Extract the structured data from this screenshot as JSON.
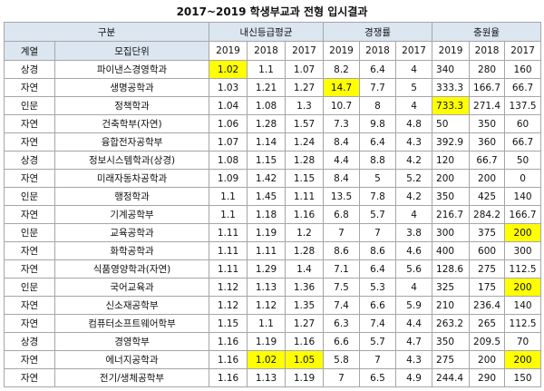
{
  "title": "2017~2019 학생부교과 전형 입시결과",
  "header": {
    "group": "구분",
    "grade_avg": "내신등급평균",
    "competition": "경쟁률",
    "fill_rate": "충원율",
    "field": "계열",
    "unit": "모집단위",
    "years": [
      "2019",
      "2018",
      "2017"
    ]
  },
  "highlight_color": "#ffff00",
  "rows": [
    {
      "field": "상경",
      "unit": "파이낸스경영학과",
      "g": [
        "1.02",
        "1.1",
        "1.07"
      ],
      "c": [
        "8.2",
        "6.4",
        "4"
      ],
      "f": [
        "340",
        "280",
        "160"
      ],
      "hl": [
        "g0"
      ]
    },
    {
      "field": "자연",
      "unit": "생명공학과",
      "g": [
        "1.03",
        "1.21",
        "1.27"
      ],
      "c": [
        "14.7",
        "7.7",
        "5"
      ],
      "f": [
        "333.3",
        "166.7",
        "66.7"
      ],
      "hl": [
        "c0"
      ]
    },
    {
      "field": "인문",
      "unit": "정책학과",
      "g": [
        "1.04",
        "1.08",
        "1.3"
      ],
      "c": [
        "10.7",
        "8",
        "4"
      ],
      "f": [
        "733.3",
        "271.4",
        "137.5"
      ],
      "hl": [
        "f0"
      ]
    },
    {
      "field": "자연",
      "unit": "건축학부(자연)",
      "g": [
        "1.06",
        "1.28",
        "1.57"
      ],
      "c": [
        "7.3",
        "9.8",
        "4.8"
      ],
      "f": [
        "50",
        "350",
        "60"
      ],
      "hl": []
    },
    {
      "field": "자연",
      "unit": "융합전자공학부",
      "g": [
        "1.07",
        "1.14",
        "1.24"
      ],
      "c": [
        "8.4",
        "6.4",
        "4.3"
      ],
      "f": [
        "392.9",
        "360",
        "66.7"
      ],
      "hl": []
    },
    {
      "field": "상경",
      "unit": "정보시스템학과(상경)",
      "g": [
        "1.08",
        "1.15",
        "1.28"
      ],
      "c": [
        "4.4",
        "8.8",
        "4.2"
      ],
      "f": [
        "120",
        "66.7",
        "50"
      ],
      "hl": []
    },
    {
      "field": "자연",
      "unit": "미래자동차공학과",
      "g": [
        "1.09",
        "1.42",
        "1.15"
      ],
      "c": [
        "8.4",
        "5",
        "5.2"
      ],
      "f": [
        "200",
        "200",
        "0"
      ],
      "hl": []
    },
    {
      "field": "인문",
      "unit": "행정학과",
      "g": [
        "1.1",
        "1.45",
        "1.11"
      ],
      "c": [
        "13.5",
        "7.8",
        "4.2"
      ],
      "f": [
        "350",
        "425",
        "140"
      ],
      "hl": []
    },
    {
      "field": "자연",
      "unit": "기계공학부",
      "g": [
        "1.1",
        "1.18",
        "1.16"
      ],
      "c": [
        "6.8",
        "5.7",
        "4"
      ],
      "f": [
        "216.7",
        "284.2",
        "166.7"
      ],
      "hl": []
    },
    {
      "field": "인문",
      "unit": "교육공학과",
      "g": [
        "1.11",
        "1.19",
        "1.2"
      ],
      "c": [
        "7",
        "7",
        "3.8"
      ],
      "f": [
        "300",
        "375",
        "200"
      ],
      "hl": [
        "f2"
      ]
    },
    {
      "field": "자연",
      "unit": "화학공학과",
      "g": [
        "1.11",
        "1.11",
        "1.28"
      ],
      "c": [
        "8.6",
        "8.6",
        "4.6"
      ],
      "f": [
        "400",
        "600",
        "300"
      ],
      "hl": []
    },
    {
      "field": "자연",
      "unit": "식품영양학과(자연)",
      "g": [
        "1.11",
        "1.29",
        "1.4"
      ],
      "c": [
        "7.1",
        "6.4",
        "5.6"
      ],
      "f": [
        "128.6",
        "275",
        "112.5"
      ],
      "hl": []
    },
    {
      "field": "인문",
      "unit": "국어교육과",
      "g": [
        "1.12",
        "1.13",
        "1.36"
      ],
      "c": [
        "7.5",
        "5.3",
        "4"
      ],
      "f": [
        "325",
        "175",
        "200"
      ],
      "hl": [
        "f2"
      ]
    },
    {
      "field": "자연",
      "unit": "신소재공학부",
      "g": [
        "1.12",
        "1.12",
        "1.35"
      ],
      "c": [
        "7.4",
        "6.6",
        "5.9"
      ],
      "f": [
        "210",
        "236.4",
        "140"
      ],
      "hl": []
    },
    {
      "field": "자연",
      "unit": "컴퓨터소프트웨어학부",
      "g": [
        "1.15",
        "1.1",
        "1.27"
      ],
      "c": [
        "6.3",
        "7.4",
        "4.4"
      ],
      "f": [
        "263.2",
        "265",
        "112.5"
      ],
      "hl": []
    },
    {
      "field": "상경",
      "unit": "경영학부",
      "g": [
        "1.16",
        "1.19",
        "1.16"
      ],
      "c": [
        "6.6",
        "5.7",
        "4.7"
      ],
      "f": [
        "350",
        "209.5",
        "70"
      ],
      "hl": []
    },
    {
      "field": "자연",
      "unit": "에너지공학과",
      "g": [
        "1.16",
        "1.02",
        "1.05"
      ],
      "c": [
        "5.8",
        "7",
        "4.3"
      ],
      "f": [
        "275",
        "200",
        "200"
      ],
      "hl": [
        "g1",
        "g2",
        "f2"
      ]
    },
    {
      "field": "자연",
      "unit": "전기/생체공학부",
      "g": [
        "1.16",
        "1.13",
        "1.19"
      ],
      "c": [
        "7",
        "6.5",
        "4.9"
      ],
      "f": [
        "244.4",
        "290",
        "150"
      ],
      "hl": []
    }
  ]
}
